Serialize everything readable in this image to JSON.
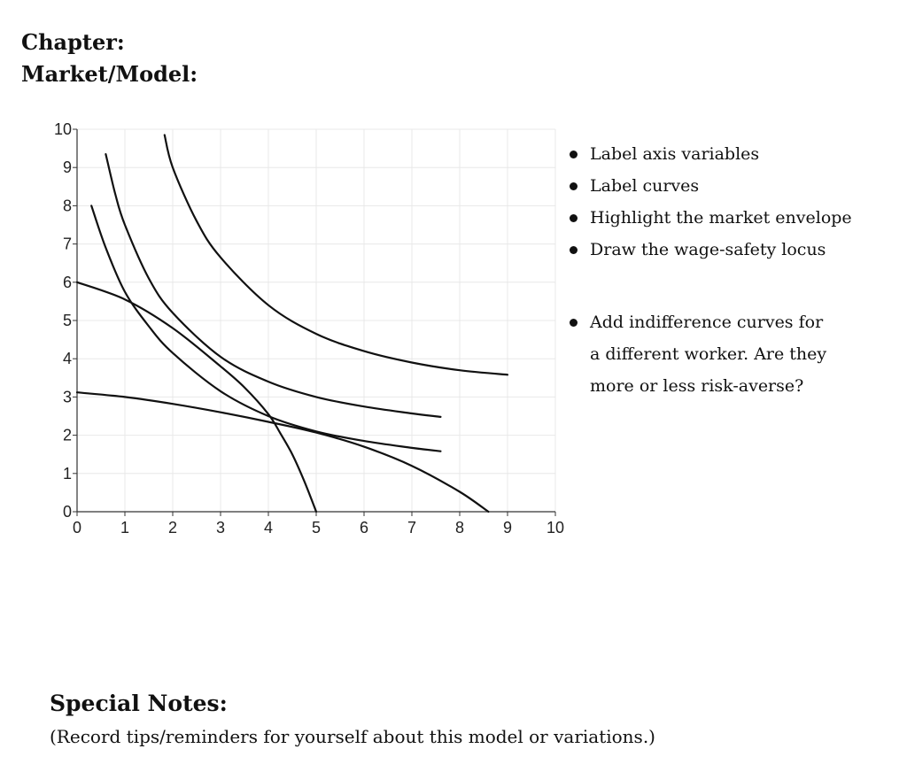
{
  "headings": {
    "chapter": "Chapter:",
    "model": "Market/Model:"
  },
  "chart_data": {
    "type": "line",
    "xlim": [
      0,
      10
    ],
    "ylim": [
      0,
      10
    ],
    "xticks": [
      "0",
      "1",
      "2",
      "3",
      "4",
      "5",
      "6",
      "7",
      "8",
      "9",
      "10"
    ],
    "yticks": [
      "0",
      "1",
      "2",
      "3",
      "4",
      "5",
      "6",
      "7",
      "8",
      "9",
      "10"
    ],
    "grid": true,
    "series": [
      {
        "points": [
          [
            1.83,
            9.85
          ],
          [
            2.0,
            9.0
          ],
          [
            2.5,
            7.6
          ],
          [
            3.0,
            6.65
          ],
          [
            4.0,
            5.4
          ],
          [
            5.0,
            4.65
          ],
          [
            6.0,
            4.2
          ],
          [
            7.0,
            3.9
          ],
          [
            8.0,
            3.7
          ],
          [
            9.0,
            3.58
          ]
        ]
      },
      {
        "points": [
          [
            0.6,
            9.35
          ],
          [
            0.8,
            8.3
          ],
          [
            1.0,
            7.5
          ],
          [
            1.5,
            6.1
          ],
          [
            2.0,
            5.2
          ],
          [
            3.0,
            4.05
          ],
          [
            4.0,
            3.4
          ],
          [
            5.0,
            3.0
          ],
          [
            6.0,
            2.75
          ],
          [
            7.0,
            2.57
          ],
          [
            7.6,
            2.48
          ]
        ]
      },
      {
        "points": [
          [
            0.3,
            8.0
          ],
          [
            0.6,
            6.9
          ],
          [
            1.0,
            5.75
          ],
          [
            1.5,
            4.85
          ],
          [
            2.0,
            4.15
          ],
          [
            3.0,
            3.15
          ],
          [
            4.0,
            2.5
          ],
          [
            5.0,
            2.1
          ],
          [
            6.0,
            1.85
          ],
          [
            7.0,
            1.67
          ],
          [
            7.6,
            1.58
          ]
        ]
      },
      {
        "points": [
          [
            0.0,
            6.0
          ],
          [
            1.0,
            5.55
          ],
          [
            2.0,
            4.8
          ],
          [
            3.0,
            3.8
          ],
          [
            3.5,
            3.25
          ],
          [
            4.0,
            2.55
          ],
          [
            4.25,
            2.05
          ],
          [
            4.5,
            1.5
          ],
          [
            4.75,
            0.8
          ],
          [
            5.0,
            0.0
          ]
        ]
      },
      {
        "points": [
          [
            0.0,
            3.12
          ],
          [
            1.0,
            3.0
          ],
          [
            2.0,
            2.82
          ],
          [
            3.0,
            2.6
          ],
          [
            4.0,
            2.35
          ],
          [
            5.0,
            2.07
          ],
          [
            6.0,
            1.7
          ],
          [
            7.0,
            1.2
          ],
          [
            8.0,
            0.52
          ],
          [
            8.6,
            0.0
          ]
        ]
      }
    ]
  },
  "bullets": [
    [
      "Label axis variables"
    ],
    [
      "Label curves"
    ],
    [
      "Highlight the market envelope"
    ],
    [
      "Draw the wage-safety locus"
    ],
    [
      "Add indifference curves for",
      "a different worker.  Are they",
      "more or less risk-averse?"
    ]
  ],
  "special_notes": {
    "title": "Special Notes:",
    "text": "(Record tips/reminders for yourself about this model or variations.)"
  },
  "colors": {
    "curve": "#111111",
    "grid": "#e8e8e8",
    "axis": "#333333"
  }
}
